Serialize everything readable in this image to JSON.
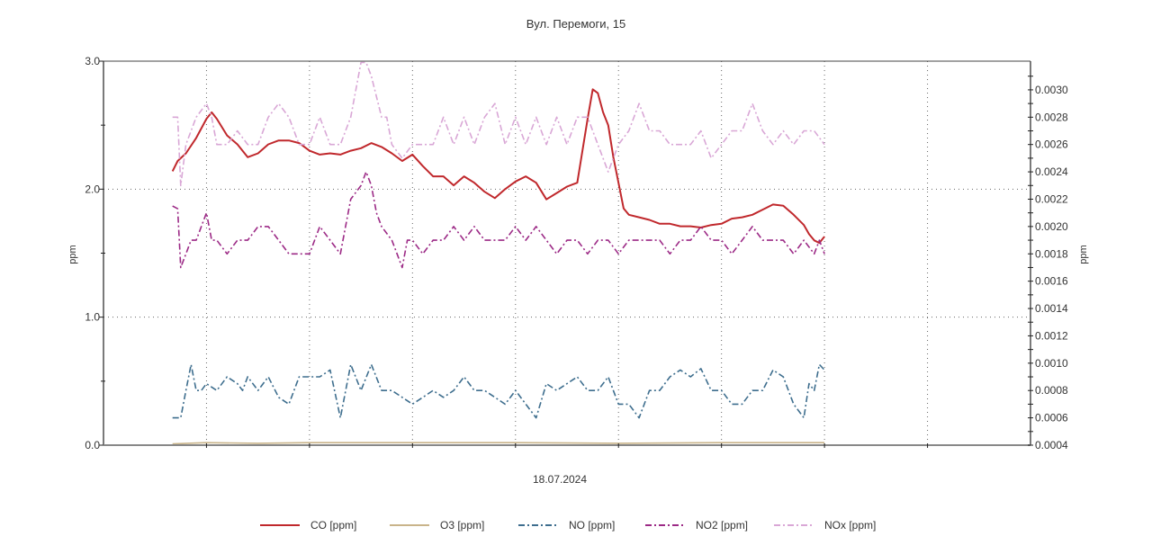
{
  "chart_data": {
    "type": "line",
    "title": "Вул. Перемоги, 15",
    "xlabel": "18.07.2024",
    "ylabel_left": "ppm",
    "ylabel_right": "ppm",
    "ylim_left": [
      0.0,
      3.0
    ],
    "ylim_right": [
      0.0004,
      0.00321
    ],
    "yticks_left": [
      "0.0",
      "1.0",
      "2.0",
      "3.0"
    ],
    "yticks_left_values": [
      0,
      1,
      2,
      3
    ],
    "yticks_right": [
      "0.0004",
      "0.0006",
      "0.0008",
      "0.0010",
      "0.0012",
      "0.0014",
      "0.0016",
      "0.0018",
      "0.0020",
      "0.0022",
      "0.0024",
      "0.0026",
      "0.0028",
      "0.0030"
    ],
    "yticks_right_values": [
      0.0004,
      0.0006,
      0.0008,
      0.001,
      0.0012,
      0.0014,
      0.0016,
      0.0018,
      0.002,
      0.0022,
      0.0024,
      0.0026,
      0.0028,
      0.003
    ],
    "xlim": [
      0,
      9
    ],
    "x_gridlines": [
      1,
      2,
      3,
      4,
      5,
      6,
      7,
      8
    ],
    "grid": true,
    "legend_position": "bottom",
    "series": [
      {
        "name": "CO [ppm]",
        "axis": "left",
        "color": "#c0282c",
        "dash": "solid",
        "x": [
          0.67,
          0.72,
          0.8,
          0.9,
          1.0,
          1.05,
          1.1,
          1.2,
          1.3,
          1.4,
          1.5,
          1.6,
          1.7,
          1.8,
          1.9,
          2.0,
          2.1,
          2.2,
          2.3,
          2.4,
          2.5,
          2.6,
          2.7,
          2.8,
          2.9,
          3.0,
          3.1,
          3.2,
          3.3,
          3.4,
          3.5,
          3.6,
          3.7,
          3.8,
          3.9,
          4.0,
          4.1,
          4.2,
          4.3,
          4.4,
          4.5,
          4.6,
          4.7,
          4.75,
          4.8,
          4.85,
          4.9,
          4.95,
          5.0,
          5.05,
          5.1,
          5.2,
          5.3,
          5.4,
          5.5,
          5.6,
          5.7,
          5.8,
          5.9,
          6.0,
          6.1,
          6.2,
          6.3,
          6.4,
          6.5,
          6.6,
          6.7,
          6.8,
          6.85,
          6.9,
          6.95,
          7.0
        ],
        "values": [
          2.14,
          2.22,
          2.28,
          2.4,
          2.55,
          2.6,
          2.55,
          2.42,
          2.35,
          2.25,
          2.28,
          2.35,
          2.38,
          2.38,
          2.36,
          2.3,
          2.27,
          2.28,
          2.27,
          2.3,
          2.32,
          2.36,
          2.33,
          2.28,
          2.22,
          2.27,
          2.18,
          2.1,
          2.1,
          2.03,
          2.1,
          2.05,
          1.98,
          1.93,
          2.0,
          2.06,
          2.1,
          2.05,
          1.92,
          1.97,
          2.02,
          2.05,
          2.55,
          2.78,
          2.75,
          2.6,
          2.5,
          2.25,
          2.05,
          1.85,
          1.8,
          1.78,
          1.76,
          1.73,
          1.73,
          1.71,
          1.71,
          1.7,
          1.72,
          1.73,
          1.77,
          1.78,
          1.8,
          1.84,
          1.88,
          1.87,
          1.8,
          1.72,
          1.65,
          1.6,
          1.58,
          1.63
        ]
      },
      {
        "name": "O3 [ppm]",
        "axis": "left",
        "color": "#c9b48a",
        "dash": "solid",
        "x": [
          0.67,
          1.0,
          1.5,
          2.0,
          3.0,
          4.0,
          5.0,
          6.0,
          7.0
        ],
        "values": [
          0.01,
          0.02,
          0.015,
          0.02,
          0.02,
          0.02,
          0.015,
          0.02,
          0.02
        ]
      },
      {
        "name": "NO [ppm]",
        "axis": "right",
        "color": "#3e6e8e",
        "dash": "dashdot",
        "x": [
          0.67,
          0.75,
          0.8,
          0.85,
          0.9,
          0.95,
          1.0,
          1.1,
          1.2,
          1.3,
          1.35,
          1.4,
          1.5,
          1.6,
          1.7,
          1.8,
          1.9,
          2.0,
          2.1,
          2.2,
          2.3,
          2.4,
          2.5,
          2.6,
          2.7,
          2.8,
          2.9,
          3.0,
          3.1,
          3.2,
          3.3,
          3.4,
          3.5,
          3.6,
          3.7,
          3.8,
          3.9,
          4.0,
          4.1,
          4.2,
          4.3,
          4.4,
          4.5,
          4.6,
          4.7,
          4.8,
          4.9,
          5.0,
          5.1,
          5.2,
          5.3,
          5.4,
          5.5,
          5.6,
          5.7,
          5.8,
          5.9,
          6.0,
          6.1,
          6.2,
          6.3,
          6.4,
          6.5,
          6.6,
          6.7,
          6.8,
          6.85,
          6.9,
          6.95,
          7.0
        ],
        "values": [
          0.0006,
          0.0006,
          0.0008,
          0.00099,
          0.0008,
          0.0008,
          0.00085,
          0.0008,
          0.0009,
          0.00085,
          0.0008,
          0.0009,
          0.0008,
          0.0009,
          0.00075,
          0.0007,
          0.0009,
          0.0009,
          0.0009,
          0.00095,
          0.0006,
          0.00099,
          0.0008,
          0.00099,
          0.0008,
          0.0008,
          0.00075,
          0.0007,
          0.00075,
          0.0008,
          0.00075,
          0.0008,
          0.0009,
          0.0008,
          0.0008,
          0.00075,
          0.0007,
          0.0008,
          0.0007,
          0.0006,
          0.00085,
          0.0008,
          0.00085,
          0.0009,
          0.0008,
          0.0008,
          0.0009,
          0.0007,
          0.0007,
          0.0006,
          0.0008,
          0.0008,
          0.0009,
          0.00095,
          0.0009,
          0.00096,
          0.0008,
          0.0008,
          0.0007,
          0.0007,
          0.0008,
          0.0008,
          0.00095,
          0.0009,
          0.0007,
          0.0006,
          0.00085,
          0.0008,
          0.00099,
          0.00095
        ]
      },
      {
        "name": "NO2 [ppm]",
        "axis": "right",
        "color": "#9c2a86",
        "dash": "dashdot",
        "x": [
          0.67,
          0.72,
          0.75,
          0.8,
          0.85,
          0.9,
          0.95,
          1.0,
          1.05,
          1.1,
          1.2,
          1.3,
          1.4,
          1.5,
          1.6,
          1.7,
          1.8,
          1.9,
          2.0,
          2.1,
          2.2,
          2.3,
          2.4,
          2.5,
          2.55,
          2.6,
          2.65,
          2.7,
          2.8,
          2.85,
          2.9,
          2.95,
          3.0,
          3.1,
          3.2,
          3.3,
          3.4,
          3.5,
          3.6,
          3.7,
          3.8,
          3.9,
          4.0,
          4.1,
          4.2,
          4.3,
          4.4,
          4.5,
          4.6,
          4.7,
          4.8,
          4.9,
          5.0,
          5.1,
          5.2,
          5.3,
          5.4,
          5.5,
          5.6,
          5.7,
          5.8,
          5.9,
          6.0,
          6.1,
          6.2,
          6.3,
          6.4,
          6.5,
          6.6,
          6.7,
          6.8,
          6.9,
          6.95,
          7.0
        ],
        "values": [
          0.00215,
          0.00213,
          0.0017,
          0.0018,
          0.0019,
          0.0019,
          0.002,
          0.0021,
          0.0019,
          0.0019,
          0.0018,
          0.0019,
          0.0019,
          0.002,
          0.002,
          0.0019,
          0.0018,
          0.0018,
          0.0018,
          0.002,
          0.0019,
          0.0018,
          0.0022,
          0.0023,
          0.0024,
          0.0023,
          0.0021,
          0.002,
          0.0019,
          0.0018,
          0.0017,
          0.0019,
          0.0019,
          0.0018,
          0.0019,
          0.0019,
          0.002,
          0.0019,
          0.002,
          0.0019,
          0.0019,
          0.0019,
          0.002,
          0.0019,
          0.002,
          0.0019,
          0.0018,
          0.0019,
          0.0019,
          0.0018,
          0.0019,
          0.0019,
          0.0018,
          0.0019,
          0.0019,
          0.0019,
          0.0019,
          0.0018,
          0.0019,
          0.0019,
          0.002,
          0.0019,
          0.0019,
          0.0018,
          0.0019,
          0.002,
          0.0019,
          0.0019,
          0.0019,
          0.0018,
          0.0019,
          0.0018,
          0.0019,
          0.0018
        ]
      },
      {
        "name": "NOx [ppm]",
        "axis": "right",
        "color": "#d9a7d6",
        "dash": "dashdot",
        "x": [
          0.67,
          0.72,
          0.75,
          0.8,
          0.9,
          1.0,
          1.05,
          1.1,
          1.2,
          1.3,
          1.4,
          1.5,
          1.6,
          1.7,
          1.8,
          1.9,
          2.0,
          2.1,
          2.2,
          2.3,
          2.4,
          2.5,
          2.55,
          2.6,
          2.7,
          2.75,
          2.8,
          2.9,
          3.0,
          3.1,
          3.2,
          3.3,
          3.4,
          3.5,
          3.6,
          3.7,
          3.8,
          3.9,
          4.0,
          4.1,
          4.2,
          4.3,
          4.4,
          4.5,
          4.6,
          4.7,
          4.8,
          4.9,
          5.0,
          5.1,
          5.2,
          5.3,
          5.4,
          5.5,
          5.6,
          5.7,
          5.8,
          5.9,
          6.0,
          6.1,
          6.2,
          6.3,
          6.4,
          6.5,
          6.6,
          6.7,
          6.8,
          6.9,
          7.0
        ],
        "values": [
          0.0028,
          0.0028,
          0.0023,
          0.0026,
          0.0028,
          0.0029,
          0.0028,
          0.0026,
          0.0026,
          0.0027,
          0.0026,
          0.0026,
          0.0028,
          0.0029,
          0.0028,
          0.0026,
          0.0026,
          0.0028,
          0.0026,
          0.0026,
          0.0028,
          0.0032,
          0.0032,
          0.0031,
          0.0028,
          0.0028,
          0.0026,
          0.0025,
          0.0026,
          0.0026,
          0.0026,
          0.0028,
          0.0026,
          0.0028,
          0.0026,
          0.0028,
          0.0029,
          0.0026,
          0.0028,
          0.0026,
          0.0028,
          0.0026,
          0.0028,
          0.0026,
          0.0028,
          0.0028,
          0.0026,
          0.0024,
          0.0026,
          0.0027,
          0.0029,
          0.0027,
          0.0027,
          0.0026,
          0.0026,
          0.0026,
          0.0027,
          0.0025,
          0.0026,
          0.0027,
          0.0027,
          0.0029,
          0.0027,
          0.0026,
          0.0027,
          0.0026,
          0.0027,
          0.0027,
          0.0026
        ]
      }
    ]
  }
}
